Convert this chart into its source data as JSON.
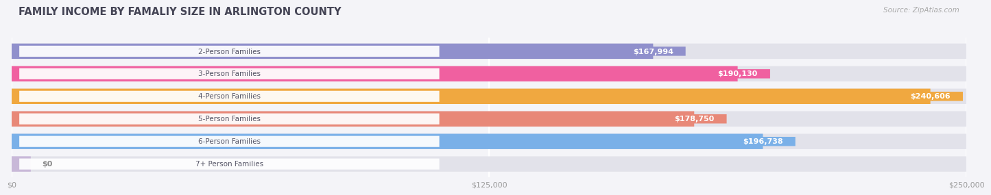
{
  "title": "FAMILY INCOME BY FAMALIY SIZE IN ARLINGTON COUNTY",
  "source": "Source: ZipAtlas.com",
  "categories": [
    "2-Person Families",
    "3-Person Families",
    "4-Person Families",
    "5-Person Families",
    "6-Person Families",
    "7+ Person Families"
  ],
  "values": [
    167994,
    190130,
    240606,
    178750,
    196738,
    0
  ],
  "labels": [
    "$167,994",
    "$190,130",
    "$240,606",
    "$178,750",
    "$196,738",
    "$0"
  ],
  "bar_colors": [
    "#9090cc",
    "#f060a0",
    "#f0a840",
    "#e88878",
    "#7ab0e8",
    "#c8b8d8"
  ],
  "background_color": "#f4f4f8",
  "bar_bg_color": "#e2e2ea",
  "xlim": [
    0,
    250000
  ],
  "xticks": [
    0,
    125000,
    250000
  ],
  "xticklabels": [
    "$0",
    "$125,000",
    "$250,000"
  ],
  "title_fontsize": 10.5,
  "label_fontsize": 8,
  "tick_fontsize": 8,
  "fig_width": 14.06,
  "fig_height": 3.05
}
